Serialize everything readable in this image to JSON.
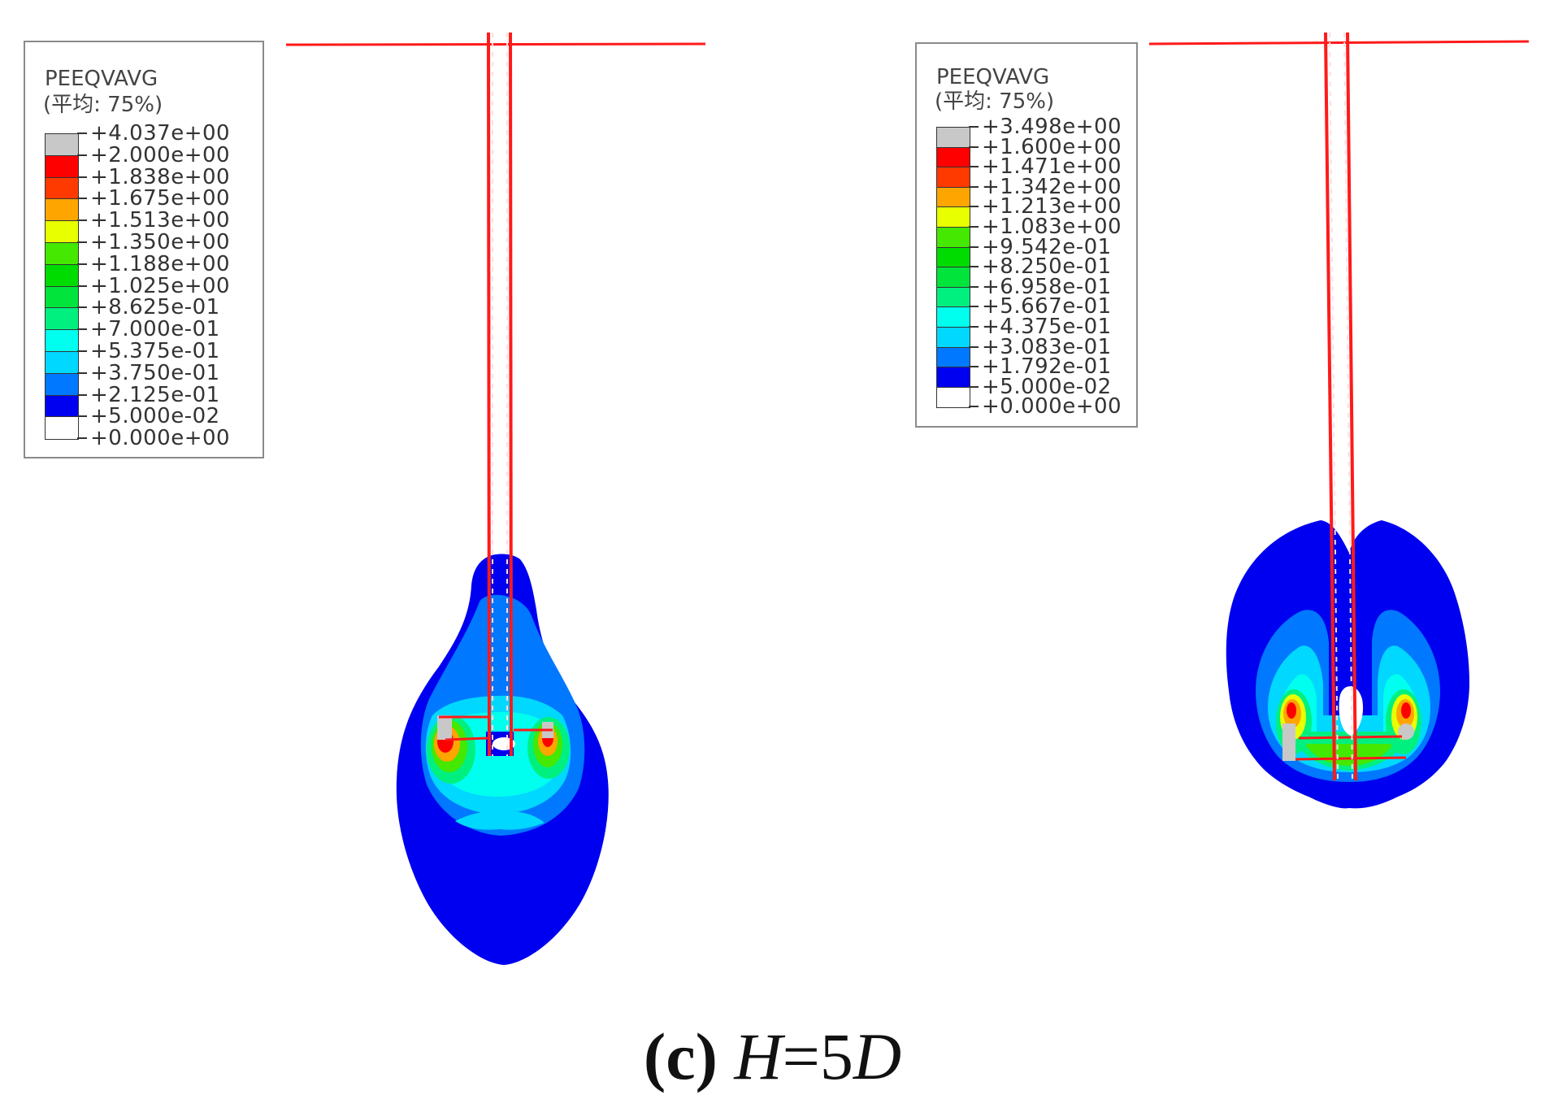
{
  "colors": {
    "gray": "#c8c8c8",
    "red": "#ff0000",
    "red2": "#ff3a00",
    "orange": "#ffa500",
    "yellow": "#e8ff00",
    "green1": "#44e800",
    "green2": "#00dc00",
    "green3": "#00e43c",
    "green4": "#00f080",
    "cyan1": "#00ffee",
    "cyan2": "#00d8ff",
    "blue1": "#0078ff",
    "blue2": "#0000f0",
    "white": "#ffffff",
    "pile": "#ff1a1a"
  },
  "left_legend": {
    "title": "PEEQVAVG",
    "subtitle": "(平均: 75%)",
    "labels": [
      "+4.037e+00",
      "+2.000e+00",
      "+1.838e+00",
      "+1.675e+00",
      "+1.513e+00",
      "+1.350e+00",
      "+1.188e+00",
      "+1.025e+00",
      "+8.625e-01",
      "+7.000e-01",
      "+5.375e-01",
      "+3.750e-01",
      "+2.125e-01",
      "+5.000e-02",
      "+0.000e+00"
    ],
    "colors": [
      "#c8c8c8",
      "#ff0000",
      "#ff3a00",
      "#ffa500",
      "#e8ff00",
      "#44e800",
      "#00dc00",
      "#00e43c",
      "#00f080",
      "#00ffee",
      "#00d8ff",
      "#0078ff",
      "#0000f0",
      "#ffffff"
    ]
  },
  "right_legend": {
    "title": "PEEQVAVG",
    "subtitle": "(平均: 75%)",
    "labels": [
      "+3.498e+00",
      "+1.600e+00",
      "+1.471e+00",
      "+1.342e+00",
      "+1.213e+00",
      "+1.083e+00",
      "+9.542e-01",
      "+8.250e-01",
      "+6.958e-01",
      "+5.667e-01",
      "+4.375e-01",
      "+3.083e-01",
      "+1.792e-01",
      "+5.000e-02",
      "+0.000e+00"
    ],
    "colors": [
      "#c8c8c8",
      "#ff0000",
      "#ff3a00",
      "#ffa500",
      "#e8ff00",
      "#44e800",
      "#00dc00",
      "#00e43c",
      "#00f080",
      "#00ffee",
      "#00d8ff",
      "#0078ff",
      "#0000f0",
      "#ffffff"
    ]
  },
  "caption": {
    "letter": "(c)",
    "h": "H",
    "eq": "=5",
    "d": "D"
  }
}
